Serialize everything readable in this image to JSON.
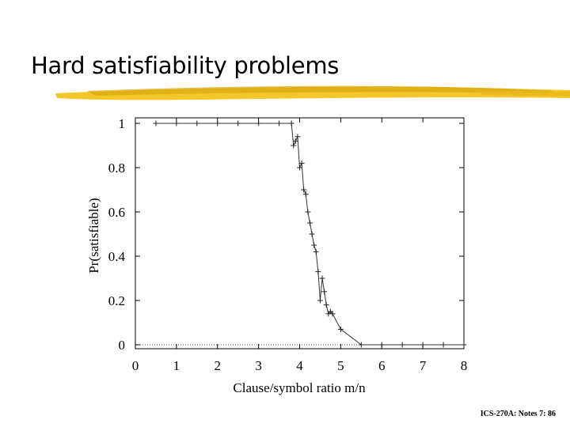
{
  "slide": {
    "title": "Hard satisfiability problems",
    "footer": "ICS-270A: Notes 7: 86"
  },
  "colors": {
    "accent": "#f2c41f",
    "accent_dark": "#d9a60c",
    "axis": "#000000",
    "line": "#333333"
  },
  "chart_data": {
    "type": "line",
    "title": "",
    "xlabel": "Clause/symbol ratio m/n",
    "ylabel": "Pr(satisfiable)",
    "xlim": [
      0,
      8
    ],
    "ylim": [
      0,
      1
    ],
    "x_ticks": [
      0,
      1,
      2,
      3,
      4,
      5,
      6,
      7,
      8
    ],
    "x_tick_labels": [
      "0",
      "1",
      "2",
      "3",
      "4",
      "5",
      "6",
      "7",
      "8"
    ],
    "y_ticks": [
      0,
      0.2,
      0.4,
      0.6,
      0.8,
      1
    ],
    "y_tick_labels": [
      "0",
      "0.2",
      "0.4",
      "0.6",
      "0.8",
      "1"
    ],
    "grid": false,
    "legend": "none",
    "series": [
      {
        "name": "Pr(satisfiable)",
        "x": [
          0.5,
          1.0,
          1.5,
          2.0,
          2.5,
          3.0,
          3.5,
          3.8,
          3.85,
          3.9,
          3.95,
          4.0,
          4.05,
          4.1,
          4.15,
          4.2,
          4.25,
          4.3,
          4.35,
          4.4,
          4.45,
          4.5,
          4.55,
          4.6,
          4.65,
          4.7,
          4.75,
          4.8,
          5.0,
          5.5,
          6.0,
          6.5,
          7.0,
          7.5,
          8.0
        ],
        "values": [
          1.0,
          1.0,
          1.0,
          1.0,
          1.0,
          1.0,
          1.0,
          1.0,
          0.9,
          0.92,
          0.94,
          0.8,
          0.82,
          0.7,
          0.68,
          0.6,
          0.55,
          0.5,
          0.45,
          0.42,
          0.33,
          0.2,
          0.3,
          0.24,
          0.18,
          0.14,
          0.15,
          0.14,
          0.07,
          0.0,
          0.0,
          0.0,
          0.0,
          0.0,
          0.0
        ]
      }
    ]
  }
}
